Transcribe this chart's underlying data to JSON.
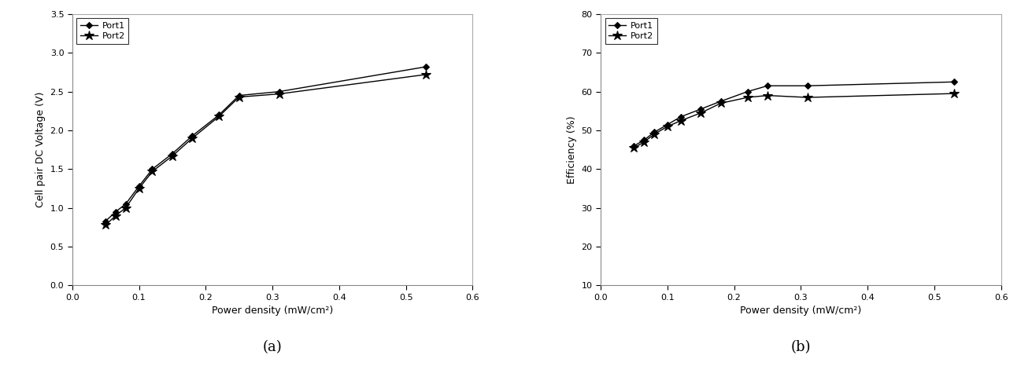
{
  "x_values": [
    0.05,
    0.065,
    0.08,
    0.1,
    0.12,
    0.15,
    0.18,
    0.22,
    0.25,
    0.31,
    0.53
  ],
  "plot_a": {
    "title": "(a)",
    "xlabel": "Power density (mW/cm²)",
    "ylabel": "Cell pair DC Voltage (V)",
    "xlim": [
      0,
      0.6
    ],
    "ylim": [
      0,
      3.5
    ],
    "xticks": [
      0,
      0.1,
      0.2,
      0.3,
      0.4,
      0.5,
      0.6
    ],
    "yticks": [
      0,
      0.5,
      1.0,
      1.5,
      2.0,
      2.5,
      3.0,
      3.5
    ],
    "port1_y": [
      0.83,
      0.95,
      1.05,
      1.28,
      1.5,
      1.7,
      1.93,
      2.2,
      2.45,
      2.5,
      2.82
    ],
    "port2_y": [
      0.78,
      0.9,
      1.0,
      1.25,
      1.47,
      1.67,
      1.9,
      2.18,
      2.43,
      2.47,
      2.72
    ]
  },
  "plot_b": {
    "title": "(b)",
    "xlabel": "Power density (mW/cm²)",
    "ylabel": "Efficiency (%)",
    "xlim": [
      0,
      0.6
    ],
    "ylim": [
      10,
      80
    ],
    "xticks": [
      0,
      0.1,
      0.2,
      0.3,
      0.4,
      0.5,
      0.6
    ],
    "yticks": [
      10,
      20,
      30,
      40,
      50,
      60,
      70,
      80
    ],
    "port1_y": [
      46.0,
      47.5,
      49.5,
      51.5,
      53.5,
      55.5,
      57.5,
      60.0,
      61.5,
      61.5,
      62.5
    ],
    "port2_y": [
      45.5,
      47.0,
      49.0,
      51.0,
      52.5,
      54.5,
      57.0,
      58.5,
      59.0,
      58.5,
      59.5
    ]
  },
  "line_color": "#000000",
  "port1_marker": "D",
  "port2_marker": "*",
  "marker_size_d": 4,
  "marker_size_star": 9,
  "linewidth": 1.0,
  "font_size_label": 9,
  "font_size_tick": 8,
  "font_size_title": 13,
  "font_size_legend": 8,
  "background_color": "#ffffff",
  "font_family": "Arial Narrow"
}
